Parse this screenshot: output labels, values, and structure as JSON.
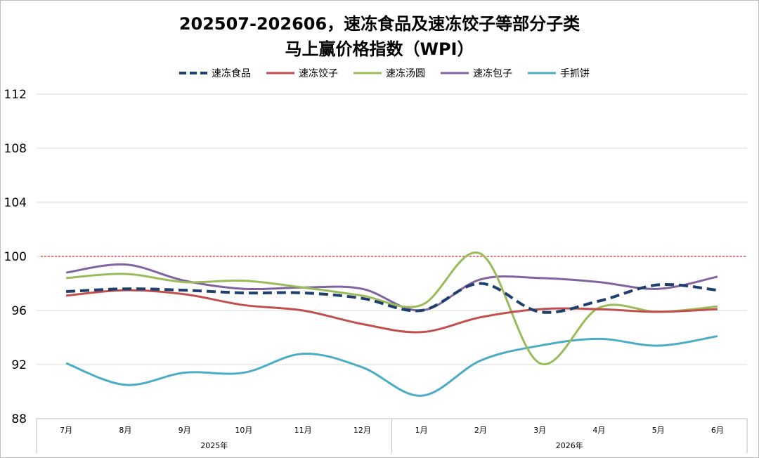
{
  "chart_data": {
    "type": "line",
    "title_line1": "202507-202606，速冻食品及速冻饺子等部分子类",
    "title_line2": "马上赢价格指数（WPI）",
    "categories": [
      "7月",
      "8月",
      "9月",
      "10月",
      "11月",
      "12月",
      "1月",
      "2月",
      "3月",
      "4月",
      "5月",
      "6月"
    ],
    "year_groups": [
      {
        "label": "2025年",
        "months": 6
      },
      {
        "label": "2026年",
        "months": 6
      }
    ],
    "ylim": [
      88,
      112
    ],
    "yticks": [
      88,
      92,
      96,
      100,
      104,
      108,
      112
    ],
    "reference_line": 100,
    "legend_position": "top",
    "grid": true,
    "series": [
      {
        "name": "速冻食品",
        "color": "#1f3f6e",
        "dashed": true,
        "values": [
          97.4,
          97.6,
          97.5,
          97.3,
          97.3,
          96.9,
          96.0,
          98.0,
          95.9,
          96.7,
          97.9,
          97.5
        ]
      },
      {
        "name": "速冻饺子",
        "color": "#c0504d",
        "dashed": false,
        "values": [
          97.1,
          97.5,
          97.2,
          96.4,
          96.0,
          95.0,
          94.4,
          95.5,
          96.1,
          96.1,
          95.9,
          96.1
        ]
      },
      {
        "name": "速冻汤圆",
        "color": "#9bbb59",
        "dashed": false,
        "values": [
          98.4,
          98.7,
          98.1,
          98.2,
          97.7,
          97.1,
          96.4,
          100.2,
          92.1,
          96.2,
          95.9,
          96.3
        ]
      },
      {
        "name": "速冻包子",
        "color": "#8064a2",
        "dashed": false,
        "values": [
          98.8,
          99.4,
          98.2,
          97.6,
          97.7,
          97.6,
          96.0,
          98.3,
          98.4,
          98.1,
          97.6,
          98.5
        ]
      },
      {
        "name": "手抓饼",
        "color": "#4bacc6",
        "dashed": false,
        "values": [
          92.1,
          90.5,
          91.4,
          91.4,
          92.8,
          91.8,
          89.7,
          92.3,
          93.4,
          93.9,
          93.4,
          94.1
        ]
      }
    ]
  }
}
